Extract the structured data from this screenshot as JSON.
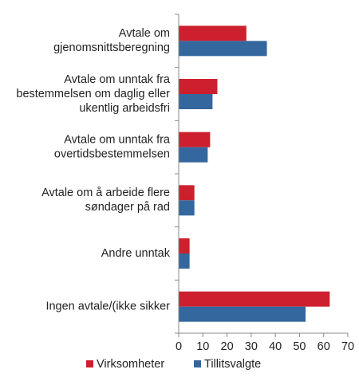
{
  "chart_data": {
    "type": "hbar",
    "categories": [
      [
        "Avtale om",
        "gjenomsnittsberegning"
      ],
      [
        "Avtale om unntak fra",
        "bestemmelsen om daglig eller",
        "ukentlig arbeidsfri"
      ],
      [
        "Avtale om unntak fra",
        "overtidsbestemmelsen"
      ],
      [
        "Avtale om å arbeide flere",
        "søndager på rad"
      ],
      [
        "Andre unntak"
      ],
      [
        "Ingen avtale/(ikke sikker"
      ]
    ],
    "series": [
      {
        "name": "Virksomheter",
        "color": "#cc202e",
        "values": [
          28,
          16,
          13,
          6.5,
          4.5,
          62.5
        ]
      },
      {
        "name": "Tillitsvalgte",
        "color": "#34679e",
        "values": [
          36.5,
          14,
          12,
          6.5,
          4.5,
          52.5
        ]
      }
    ],
    "xlim": [
      0,
      70
    ],
    "xticks": [
      0,
      10,
      20,
      30,
      40,
      50,
      60,
      70
    ],
    "legend": "bottom"
  }
}
